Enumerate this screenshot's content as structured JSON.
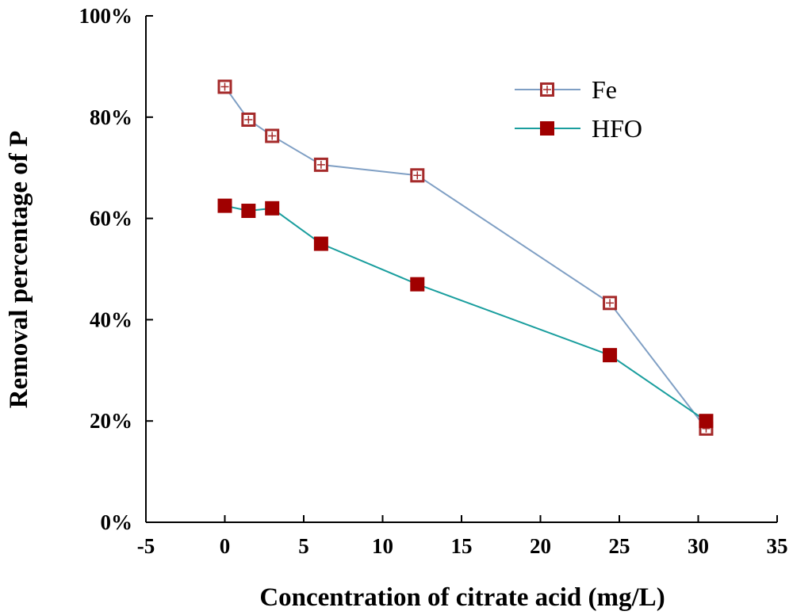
{
  "chart_data": {
    "type": "line",
    "xlabel": "Concentration of citrate acid (mg/L)",
    "ylabel": "Removal percentage of P",
    "xlim": [
      -5,
      35
    ],
    "ylim": [
      0,
      100
    ],
    "x_ticks": [
      -5,
      0,
      5,
      10,
      15,
      20,
      25,
      30,
      35
    ],
    "y_ticks": [
      0,
      20,
      40,
      60,
      80,
      100
    ],
    "y_tick_labels": [
      "0%",
      "20%",
      "40%",
      "60%",
      "80%",
      "100%"
    ],
    "grid": false,
    "legend_position": "top-right",
    "series": [
      {
        "name": "Fe",
        "marker": "hollow-square-crosshair",
        "line_color": "#7f9fc4",
        "marker_color": "#a52a2a",
        "x": [
          0,
          1.5,
          3,
          6.1,
          12.2,
          24.4,
          30.5
        ],
        "y": [
          86,
          79.5,
          76.3,
          70.6,
          68.5,
          43.3,
          18.5
        ]
      },
      {
        "name": "HFO",
        "marker": "filled-square",
        "line_color": "#1a9e9e",
        "marker_color": "#a00000",
        "x": [
          0,
          1.5,
          3,
          6.1,
          12.2,
          24.4,
          30.5
        ],
        "y": [
          62.5,
          61.5,
          62,
          55,
          47,
          33,
          20
        ]
      }
    ]
  }
}
